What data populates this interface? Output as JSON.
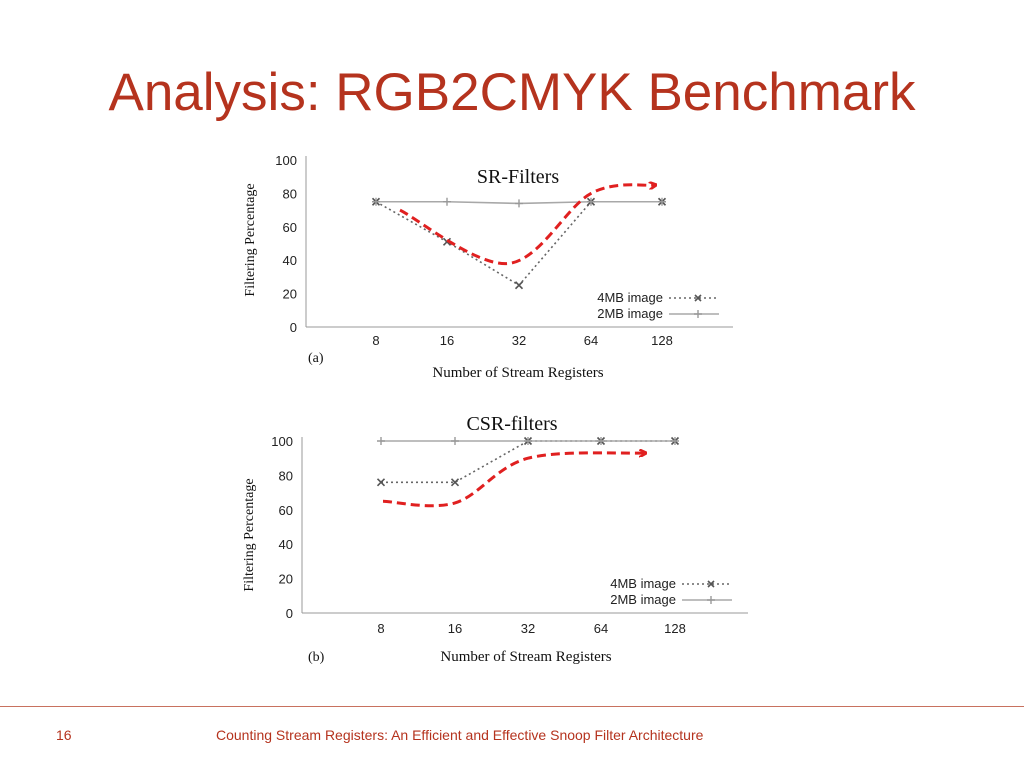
{
  "slide": {
    "title": "Analysis: RGB2CMYK Benchmark",
    "page_number": "16",
    "footer": "Counting Stream Registers: An Efficient and Effective Snoop Filter Architecture",
    "accent_color": "#b5331e",
    "trend_arrow_color": "#e02020"
  },
  "chart_data": [
    {
      "type": "line",
      "title": "SR-Filters",
      "panel_label": "(a)",
      "xlabel": "Number of Stream Registers",
      "ylabel": "Filtering Percentage",
      "categories": [
        "8",
        "16",
        "32",
        "64",
        "128"
      ],
      "yticks": [
        "0",
        "20",
        "40",
        "60",
        "80",
        "100"
      ],
      "ylim": [
        0,
        100
      ],
      "series": [
        {
          "name": "4MB image",
          "values": [
            75,
            51,
            25,
            75,
            75
          ],
          "style": "dotted",
          "marker": "x"
        },
        {
          "name": "2MB image",
          "values": [
            75,
            75,
            74,
            75,
            75
          ],
          "style": "solid",
          "marker": "+"
        }
      ],
      "legend": "bottom-right",
      "trend_arrow": [
        [
          8.5,
          70
        ],
        [
          32,
          38
        ],
        [
          64,
          80
        ],
        [
          128,
          85
        ]
      ]
    },
    {
      "type": "line",
      "title": "CSR-filters",
      "panel_label": "(b)",
      "xlabel": "Number of Stream Registers",
      "ylabel": "Filtering Percentage",
      "categories": [
        "8",
        "16",
        "32",
        "64",
        "128"
      ],
      "yticks": [
        "0",
        "20",
        "40",
        "60",
        "80",
        "100"
      ],
      "ylim": [
        0,
        100
      ],
      "series": [
        {
          "name": "4MB image",
          "values": [
            76,
            76,
            100,
            100,
            100
          ],
          "style": "dotted",
          "marker": "x"
        },
        {
          "name": "2MB image",
          "values": [
            100,
            100,
            100,
            100,
            100
          ],
          "style": "solid",
          "marker": "+"
        }
      ],
      "legend": "bottom-right",
      "trend_arrow": [
        [
          8,
          65
        ],
        [
          16,
          64
        ],
        [
          32,
          90
        ],
        [
          128,
          93
        ]
      ]
    }
  ]
}
